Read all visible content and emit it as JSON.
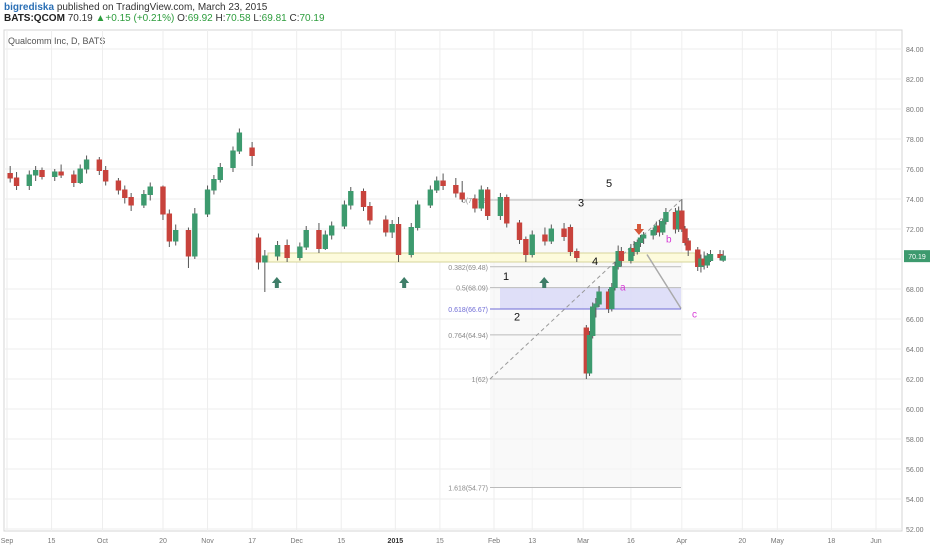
{
  "header": {
    "author": "bigrediska",
    "published": "published on TradingView.com, March 23, 2015",
    "symbol": "BATS:QCOM",
    "last": "70.19",
    "change": "+0.15 (+0.21%)",
    "o_label": "O:",
    "o_value": "69.92",
    "h_label": "H:",
    "h_value": "70.58",
    "l_label": "L:",
    "l_value": "69.81",
    "c_label": "C:",
    "c_value": "70.19"
  },
  "colors": {
    "up": "#26a69a",
    "up_body": "#3d9a6e",
    "down_body": "#c8433c",
    "grid": "#eeeeee",
    "fib": "#bbbbbb",
    "fib_text": "#8a8a8a",
    "fib618": "#6f6cd6",
    "arrow_up": "#3e7d68",
    "arrow_down": "#d5573a",
    "wave_abc": "#d63bd6",
    "support_zone": "#fdfbdc",
    "support_zone_border": "#d6d49a",
    "price_tag": "#3d9a6e"
  },
  "chart_data": {
    "type": "candlestick",
    "title": "Qualcomm Inc, D, BATS",
    "x_tick_labels": [
      "Sep",
      "15",
      "Oct",
      "20",
      "Nov",
      "17",
      "Dec",
      "15",
      "2015",
      "15",
      "Feb",
      "13",
      "Mar",
      "16",
      "Apr",
      "20",
      "May",
      "18",
      "Jun"
    ],
    "y_tick_labels": [
      "52.00",
      "54.00",
      "56.00",
      "58.00",
      "60.00",
      "62.00",
      "64.00",
      "66.00",
      "68.00",
      "70.00",
      "72.00",
      "74.00",
      "76.00",
      "78.00",
      "80.00",
      "82.00",
      "84.00",
      "86.00"
    ],
    "ylim": [
      51,
      87
    ],
    "last_price": "70.19",
    "series": [
      {
        "date": "2014-09-02",
        "o": 75.7,
        "h": 76.2,
        "l": 75.1,
        "c": 75.4
      },
      {
        "date": "2014-09-04",
        "o": 75.4,
        "h": 75.8,
        "l": 74.6,
        "c": 74.9
      },
      {
        "date": "2014-09-08",
        "o": 74.9,
        "h": 75.9,
        "l": 74.6,
        "c": 75.6
      },
      {
        "date": "2014-09-10",
        "o": 75.6,
        "h": 76.2,
        "l": 75.2,
        "c": 75.9
      },
      {
        "date": "2014-09-12",
        "o": 75.9,
        "h": 76.1,
        "l": 75.3,
        "c": 75.5
      },
      {
        "date": "2014-09-16",
        "o": 75.5,
        "h": 76.0,
        "l": 75.2,
        "c": 75.8
      },
      {
        "date": "2014-09-18",
        "o": 75.8,
        "h": 76.3,
        "l": 75.4,
        "c": 75.6
      },
      {
        "date": "2014-09-22",
        "o": 75.6,
        "h": 75.9,
        "l": 74.8,
        "c": 75.1
      },
      {
        "date": "2014-09-24",
        "o": 75.1,
        "h": 76.3,
        "l": 75.0,
        "c": 76.0
      },
      {
        "date": "2014-09-26",
        "o": 76.0,
        "h": 76.9,
        "l": 75.7,
        "c": 76.6
      },
      {
        "date": "2014-09-30",
        "o": 76.6,
        "h": 76.8,
        "l": 75.6,
        "c": 75.9
      },
      {
        "date": "2014-10-02",
        "o": 75.9,
        "h": 76.2,
        "l": 74.9,
        "c": 75.2
      },
      {
        "date": "2014-10-06",
        "o": 75.2,
        "h": 75.4,
        "l": 74.3,
        "c": 74.6
      },
      {
        "date": "2014-10-08",
        "o": 74.6,
        "h": 74.9,
        "l": 73.7,
        "c": 74.1
      },
      {
        "date": "2014-10-10",
        "o": 74.1,
        "h": 74.4,
        "l": 73.2,
        "c": 73.6
      },
      {
        "date": "2014-10-14",
        "o": 73.6,
        "h": 74.6,
        "l": 73.4,
        "c": 74.3
      },
      {
        "date": "2014-10-16",
        "o": 74.3,
        "h": 75.1,
        "l": 73.9,
        "c": 74.8
      },
      {
        "date": "2014-10-20",
        "o": 74.8,
        "h": 74.9,
        "l": 72.6,
        "c": 73.0
      },
      {
        "date": "2014-10-22",
        "o": 73.0,
        "h": 73.3,
        "l": 70.8,
        "c": 71.2
      },
      {
        "date": "2014-10-24",
        "o": 71.2,
        "h": 72.3,
        "l": 70.9,
        "c": 71.9
      },
      {
        "date": "2014-10-28",
        "o": 71.9,
        "h": 72.1,
        "l": 69.4,
        "c": 70.2
      },
      {
        "date": "2014-10-30",
        "o": 70.2,
        "h": 73.4,
        "l": 70.0,
        "c": 73.0
      },
      {
        "date": "2014-11-03",
        "o": 73.0,
        "h": 74.9,
        "l": 72.8,
        "c": 74.6
      },
      {
        "date": "2014-11-05",
        "o": 74.6,
        "h": 75.6,
        "l": 74.3,
        "c": 75.3
      },
      {
        "date": "2014-11-07",
        "o": 75.3,
        "h": 76.4,
        "l": 75.1,
        "c": 76.1
      },
      {
        "date": "2014-11-11",
        "o": 76.1,
        "h": 77.5,
        "l": 75.8,
        "c": 77.2
      },
      {
        "date": "2014-11-13",
        "o": 77.2,
        "h": 78.7,
        "l": 77.0,
        "c": 78.4
      },
      {
        "date": "2014-11-17",
        "o": 77.4,
        "h": 77.8,
        "l": 76.2,
        "c": 76.9
      },
      {
        "date": "2014-11-19",
        "o": 71.4,
        "h": 71.7,
        "l": 69.3,
        "c": 69.8
      },
      {
        "date": "2014-11-21",
        "o": 69.8,
        "h": 70.6,
        "l": 67.8,
        "c": 70.2
      },
      {
        "date": "2014-11-25",
        "o": 70.2,
        "h": 71.2,
        "l": 69.9,
        "c": 70.9
      },
      {
        "date": "2014-11-28",
        "o": 70.9,
        "h": 71.3,
        "l": 69.8,
        "c": 70.1
      },
      {
        "date": "2014-12-02",
        "o": 70.1,
        "h": 71.1,
        "l": 69.9,
        "c": 70.8
      },
      {
        "date": "2014-12-04",
        "o": 70.8,
        "h": 72.2,
        "l": 70.6,
        "c": 71.9
      },
      {
        "date": "2014-12-08",
        "o": 71.9,
        "h": 72.4,
        "l": 70.4,
        "c": 70.7
      },
      {
        "date": "2014-12-10",
        "o": 70.7,
        "h": 71.9,
        "l": 70.6,
        "c": 71.6
      },
      {
        "date": "2014-12-12",
        "o": 71.6,
        "h": 72.5,
        "l": 71.3,
        "c": 72.2
      },
      {
        "date": "2014-12-16",
        "o": 72.2,
        "h": 73.9,
        "l": 72.0,
        "c": 73.6
      },
      {
        "date": "2014-12-18",
        "o": 73.6,
        "h": 74.8,
        "l": 73.3,
        "c": 74.5
      },
      {
        "date": "2014-12-22",
        "o": 74.5,
        "h": 74.7,
        "l": 73.2,
        "c": 73.5
      },
      {
        "date": "2014-12-24",
        "o": 73.5,
        "h": 73.8,
        "l": 72.3,
        "c": 72.6
      },
      {
        "date": "2014-12-29",
        "o": 72.6,
        "h": 72.9,
        "l": 71.5,
        "c": 71.8
      },
      {
        "date": "2014-12-31",
        "o": 71.8,
        "h": 72.6,
        "l": 71.4,
        "c": 72.3
      },
      {
        "date": "2015-01-02",
        "o": 72.3,
        "h": 72.8,
        "l": 69.8,
        "c": 70.3
      },
      {
        "date": "2015-01-06",
        "o": 70.3,
        "h": 72.4,
        "l": 70.1,
        "c": 72.1
      },
      {
        "date": "2015-01-08",
        "o": 72.1,
        "h": 73.9,
        "l": 71.9,
        "c": 73.6
      },
      {
        "date": "2015-01-12",
        "o": 73.6,
        "h": 74.9,
        "l": 73.4,
        "c": 74.6
      },
      {
        "date": "2015-01-14",
        "o": 74.6,
        "h": 75.5,
        "l": 74.4,
        "c": 75.2
      },
      {
        "date": "2015-01-16",
        "o": 75.2,
        "h": 75.7,
        "l": 74.6,
        "c": 74.9
      },
      {
        "date": "2015-01-20",
        "o": 74.9,
        "h": 75.4,
        "l": 74.1,
        "c": 74.4
      },
      {
        "date": "2015-01-22",
        "o": 74.4,
        "h": 75.2,
        "l": 73.8,
        "c": 74.0
      },
      {
        "date": "2015-01-26",
        "o": 74.0,
        "h": 74.3,
        "l": 73.1,
        "c": 73.4
      },
      {
        "date": "2015-01-28",
        "o": 73.4,
        "h": 74.9,
        "l": 73.2,
        "c": 74.6
      },
      {
        "date": "2015-01-30",
        "o": 74.6,
        "h": 74.8,
        "l": 72.6,
        "c": 72.9
      },
      {
        "date": "2015-02-03",
        "o": 72.9,
        "h": 74.4,
        "l": 72.6,
        "c": 74.1
      },
      {
        "date": "2015-02-05",
        "o": 74.1,
        "h": 74.3,
        "l": 72.1,
        "c": 72.4
      },
      {
        "date": "2015-02-09",
        "o": 72.4,
        "h": 72.6,
        "l": 71.0,
        "c": 71.3
      },
      {
        "date": "2015-02-11",
        "o": 71.3,
        "h": 71.5,
        "l": 69.8,
        "c": 70.3
      },
      {
        "date": "2015-02-13",
        "o": 70.3,
        "h": 71.9,
        "l": 70.1,
        "c": 71.6
      },
      {
        "date": "2015-02-17",
        "o": 71.6,
        "h": 72.1,
        "l": 70.9,
        "c": 71.2
      },
      {
        "date": "2015-02-19",
        "o": 71.2,
        "h": 72.3,
        "l": 71.0,
        "c": 72.0
      },
      {
        "date": "2015-02-23",
        "o": 72.0,
        "h": 72.4,
        "l": 71.2,
        "c": 71.5
      },
      {
        "date": "2015-02-25",
        "o": 72.1,
        "h": 72.3,
        "l": 70.2,
        "c": 70.5
      },
      {
        "date": "2015-02-27",
        "o": 70.5,
        "h": 70.7,
        "l": 69.8,
        "c": 70.1
      },
      {
        "date": "2015-03-02",
        "o": 65.4,
        "h": 65.6,
        "l": 62.0,
        "c": 62.4
      },
      {
        "date": "2015-03-03",
        "o": 62.4,
        "h": 65.2,
        "l": 62.2,
        "c": 64.9
      },
      {
        "date": "2015-03-04",
        "o": 64.9,
        "h": 67.1,
        "l": 64.7,
        "c": 66.8
      },
      {
        "date": "2015-03-05",
        "o": 66.8,
        "h": 67.4,
        "l": 66.1,
        "c": 67.0
      },
      {
        "date": "2015-03-06",
        "o": 67.0,
        "h": 68.2,
        "l": 66.8,
        "c": 67.8
      },
      {
        "date": "2015-03-09",
        "o": 67.8,
        "h": 68.0,
        "l": 66.4,
        "c": 66.7
      },
      {
        "date": "2015-03-10",
        "o": 66.7,
        "h": 68.4,
        "l": 66.5,
        "c": 68.1
      },
      {
        "date": "2015-03-11",
        "o": 68.1,
        "h": 69.8,
        "l": 67.9,
        "c": 69.5
      },
      {
        "date": "2015-03-12",
        "o": 69.5,
        "h": 70.9,
        "l": 69.3,
        "c": 70.5
      },
      {
        "date": "2015-03-13",
        "o": 70.5,
        "h": 70.8,
        "l": 69.5,
        "c": 69.9
      },
      {
        "date": "2015-03-16",
        "o": 69.9,
        "h": 71.0,
        "l": 69.7,
        "c": 70.7
      },
      {
        "date": "2015-03-17",
        "o": 70.7,
        "h": 71.2,
        "l": 70.2,
        "c": 70.5
      },
      {
        "date": "2015-03-18",
        "o": 70.5,
        "h": 71.3,
        "l": 70.3,
        "c": 71.1
      },
      {
        "date": "2015-03-19",
        "o": 71.1,
        "h": 71.6,
        "l": 70.8,
        "c": 71.4
      },
      {
        "date": "2015-03-20",
        "o": 71.4,
        "h": 71.8,
        "l": 71.0,
        "c": 71.6
      },
      {
        "date": "2015-03-23",
        "o": 71.6,
        "h": 72.1,
        "l": 71.3,
        "c": 71.9
      },
      {
        "date": "2015-03-24",
        "o": 71.9,
        "h": 72.5,
        "l": 71.6,
        "c": 72.2
      },
      {
        "date": "2015-03-25",
        "o": 72.2,
        "h": 72.6,
        "l": 71.5,
        "c": 71.8
      },
      {
        "date": "2015-03-26",
        "o": 71.8,
        "h": 72.7,
        "l": 71.6,
        "c": 72.5
      },
      {
        "date": "2015-03-27",
        "o": 72.5,
        "h": 73.4,
        "l": 72.3,
        "c": 73.1
      },
      {
        "date": "2015-03-30",
        "o": 73.1,
        "h": 73.4,
        "l": 71.7,
        "c": 72.0
      },
      {
        "date": "2015-03-31",
        "o": 72.0,
        "h": 73.5,
        "l": 71.8,
        "c": 73.2
      },
      {
        "date": "2015-04-01",
        "o": 73.2,
        "h": 74.0,
        "l": 71.8,
        "c": 72.0
      },
      {
        "date": "2015-04-02",
        "o": 72.0,
        "h": 72.2,
        "l": 70.9,
        "c": 71.1
      },
      {
        "date": "2015-04-03",
        "o": 71.2,
        "h": 71.4,
        "l": 70.2,
        "c": 70.6
      },
      {
        "date": "2015-04-06",
        "o": 70.6,
        "h": 70.8,
        "l": 69.2,
        "c": 69.5
      },
      {
        "date": "2015-04-07",
        "o": 69.5,
        "h": 70.3,
        "l": 69.1,
        "c": 70.0
      },
      {
        "date": "2015-04-08",
        "o": 70.0,
        "h": 70.5,
        "l": 69.3,
        "c": 69.6
      },
      {
        "date": "2015-04-09",
        "o": 69.6,
        "h": 70.4,
        "l": 69.4,
        "c": 70.2
      },
      {
        "date": "2015-04-10",
        "o": 69.9,
        "h": 70.6,
        "l": 69.8,
        "c": 70.3
      },
      {
        "date": "2015-04-13",
        "o": 70.3,
        "h": 70.6,
        "l": 69.9,
        "c": 70.1
      },
      {
        "date": "2015-04-14",
        "o": 69.92,
        "h": 70.58,
        "l": 69.81,
        "c": 70.19
      }
    ],
    "fib_retracement": {
      "levels": [
        {
          "label": "0(73.93)",
          "value": 73.93
        },
        {
          "label": "0.382(69.48)",
          "value": 69.48
        },
        {
          "label": "0.5(68.09)",
          "value": 68.09
        },
        {
          "label": "0.618(66.67)",
          "value": 66.67
        },
        {
          "label": "0.764(64.94)",
          "value": 64.94
        },
        {
          "label": "1(62)",
          "value": 62.0
        },
        {
          "label": "1.618(54.77)",
          "value": 54.77
        }
      ]
    },
    "support_zone": [
      69.8,
      70.4
    ],
    "annotations": {
      "waves": [
        "1",
        "2",
        "3",
        "4",
        "5"
      ],
      "corrective": [
        "a",
        "b",
        "c"
      ]
    }
  }
}
